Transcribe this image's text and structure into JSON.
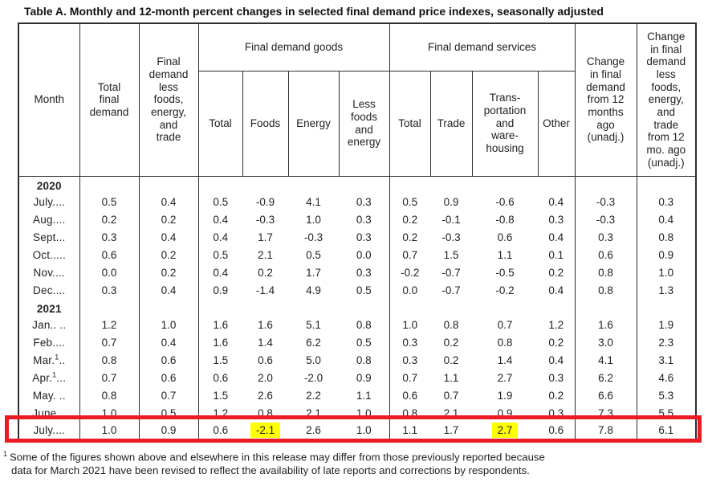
{
  "title": "Table A. Monthly and 12-month percent changes in selected final demand price indexes, seasonally adjusted",
  "colors": {
    "highlight_yellow": "#ffff00",
    "outline_red": "#ec1b23"
  },
  "header": {
    "month": "Month",
    "total_final_demand": "Total\nfinal\ndemand",
    "less_fet": "Final\ndemand\nless\nfoods,\nenergy,\nand\ntrade",
    "goods": {
      "label": "Final demand goods",
      "cols": [
        "Total",
        "Foods",
        "Energy",
        "Less\nfoods\nand\nenergy"
      ]
    },
    "services": {
      "label": "Final demand services",
      "cols": [
        "Total",
        "Trade",
        "Trans-\nportation\nand\nware-\nhousing",
        "Other"
      ]
    },
    "change_12mo": "Change\nin final\ndemand\nfrom 12\nmonths\nago\n(unadj.)",
    "change_12mo_less": "Change\nin final\ndemand\nless\nfoods,\nenergy,\nand\ntrade\nfrom 12\nmo. ago\n(unadj.)"
  },
  "table": {
    "rows": [
      {
        "type": "year",
        "label": "2020"
      },
      {
        "type": "month",
        "label": "July",
        "dots": "....",
        "values": [
          "0.5",
          "0.4",
          "0.5",
          "-0.9",
          "4.1",
          "0.3",
          "0.5",
          "0.9",
          "-0.6",
          "0.4",
          "-0.3",
          "0.3"
        ]
      },
      {
        "type": "month",
        "label": "Aug",
        "dots": "....",
        "values": [
          "0.2",
          "0.2",
          "0.4",
          "-0.3",
          "1.0",
          "0.3",
          "0.2",
          "-0.1",
          "-0.8",
          "0.3",
          "-0.3",
          "0.4"
        ]
      },
      {
        "type": "month",
        "label": "Sept",
        "dots": "...",
        "values": [
          "0.3",
          "0.4",
          "0.4",
          "1.7",
          "-0.3",
          "0.3",
          "0.2",
          "-0.3",
          "0.6",
          "0.4",
          "0.3",
          "0.8"
        ]
      },
      {
        "type": "month",
        "label": "Oct",
        "dots": ".....",
        "values": [
          "0.6",
          "0.2",
          "0.5",
          "2.1",
          "0.5",
          "0.0",
          "0.7",
          "1.5",
          "1.1",
          "0.1",
          "0.6",
          "0.9"
        ]
      },
      {
        "type": "month",
        "label": "Nov",
        "dots": "....",
        "values": [
          "0.0",
          "0.2",
          "0.4",
          "0.2",
          "1.7",
          "0.3",
          "-0.2",
          "-0.7",
          "-0.5",
          "0.2",
          "0.8",
          "1.0"
        ]
      },
      {
        "type": "month",
        "label": "Dec",
        "dots": "....",
        "values": [
          "0.3",
          "0.4",
          "0.9",
          "-1.4",
          "4.9",
          "0.5",
          "0.0",
          "-0.7",
          "-0.2",
          "0.4",
          "0.8",
          "1.3"
        ]
      },
      {
        "type": "year",
        "label": "2021"
      },
      {
        "type": "month",
        "label": "Jan",
        "dots": ".. ..",
        "values": [
          "1.2",
          "1.0",
          "1.6",
          "1.6",
          "5.1",
          "0.8",
          "1.0",
          "0.8",
          "0.7",
          "1.2",
          "1.6",
          "1.9"
        ]
      },
      {
        "type": "month",
        "label": "Feb",
        "dots": "....",
        "values": [
          "0.7",
          "0.4",
          "1.6",
          "1.4",
          "6.2",
          "0.5",
          "0.3",
          "0.2",
          "0.8",
          "0.2",
          "3.0",
          "2.3"
        ]
      },
      {
        "type": "month",
        "label": "Mar.",
        "sup": "1",
        "dots": "..",
        "values": [
          "0.8",
          "0.6",
          "1.5",
          "0.6",
          "5.0",
          "0.8",
          "0.3",
          "0.2",
          "1.4",
          "0.4",
          "4.1",
          "3.1"
        ]
      },
      {
        "type": "month",
        "label": "Apr.",
        "sup": "1",
        "dots": "...",
        "values": [
          "0.7",
          "0.6",
          "0.6",
          "2.0",
          "-2.0",
          "0.9",
          "0.7",
          "1.1",
          "2.7",
          "0.3",
          "6.2",
          "4.6"
        ]
      },
      {
        "type": "month",
        "label": "May.",
        "dots": " ..",
        "values": [
          "0.8",
          "0.7",
          "1.5",
          "2.6",
          "2.2",
          "1.1",
          "0.6",
          "0.7",
          "1.9",
          "0.2",
          "6.6",
          "5.3"
        ]
      },
      {
        "type": "month",
        "label": "June",
        "dots": "...",
        "values": [
          "1.0",
          "0.5",
          "1.2",
          "0.8",
          "2.1",
          "1.0",
          "0.8",
          "2.1",
          "0.9",
          "0.3",
          "7.3",
          "5.5"
        ]
      },
      {
        "type": "month",
        "label": "July",
        "dots": "....",
        "outlined": true,
        "highlight": [
          3,
          8
        ],
        "values": [
          "1.0",
          "0.9",
          "0.6",
          "-2.1",
          "2.6",
          "1.0",
          "1.1",
          "1.7",
          "2.7",
          "0.6",
          "7.8",
          "6.1"
        ]
      }
    ]
  },
  "footnote": {
    "sup": "1",
    "text": "Some of the figures shown above and elsewhere in this release may differ from those previously reported because\ndata for March 2021 have been revised to reflect the availability of late reports and corrections by respondents."
  }
}
